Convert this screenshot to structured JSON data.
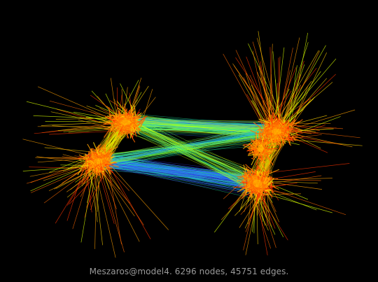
{
  "caption": "Meszaros@model4. 6296 nodes, 45751 edges.",
  "graph": {
    "name": "Meszaros@model4",
    "node_count": 6296,
    "edge_count": 45751
  },
  "colors": {
    "background": "#000000",
    "caption": "#9a9a9a",
    "edge_palette": [
      "#ff3300",
      "#ff6a00",
      "#ffa000",
      "#ffd200",
      "#d8ff00",
      "#7dff3c",
      "#20e0a0",
      "#2a8cff",
      "#3a3aff"
    ]
  }
}
